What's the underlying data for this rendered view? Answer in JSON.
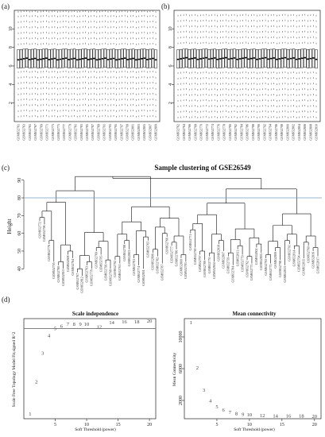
{
  "panel_labels": [
    "(a)",
    "(b)",
    "(c)",
    "(d)"
  ],
  "chart_data": [
    {
      "id": "a",
      "type": "boxplot",
      "title": "",
      "ylim": [
        0,
        12
      ],
      "yticks": [
        2,
        4,
        6,
        8,
        10
      ],
      "n_boxes": 50,
      "box": {
        "q1": 5.8,
        "median": 6.75,
        "q3": 7.8
      },
      "whisker_dashes": [
        0.5,
        1.1,
        1.7,
        2.3,
        2.9,
        3.5,
        4.1,
        4.7,
        5.3,
        8.3,
        8.9,
        9.5,
        10.1,
        10.7,
        11.3,
        11.8
      ],
      "xlabels": [
        "GSM652761",
        "GSM652763",
        "GSM652765",
        "GSM652767",
        "GSM652769",
        "GSM652771",
        "GSM652773",
        "GSM652775",
        "GSM652777",
        "GSM652779",
        "GSM652781",
        "GSM652783",
        "GSM652785",
        "GSM652787",
        "GSM652789",
        "GSM652791",
        "GSM652793",
        "GSM652795",
        "GSM652797",
        "GSM652799",
        "GSM652801",
        "GSM652803",
        "GSM652805",
        "GSM652807",
        "GSM652809"
      ]
    },
    {
      "id": "b",
      "type": "boxplot",
      "title": "",
      "ylim": [
        0,
        12
      ],
      "yticks": [
        2,
        4,
        6,
        8,
        10
      ],
      "n_boxes": 50,
      "box": {
        "q1": 5.8,
        "median": 6.8,
        "q3": 7.8
      },
      "whisker_dashes": [
        0.4,
        1.0,
        1.6,
        2.2,
        2.8,
        3.4,
        4.0,
        4.6,
        5.2,
        8.4,
        9.0,
        9.6,
        10.2,
        10.8,
        11.4
      ],
      "xlabels": [
        "GSM652762",
        "GSM652764",
        "GSM652766",
        "GSM652768",
        "GSM652770",
        "GSM652772",
        "GSM652774",
        "GSM652776",
        "GSM652778",
        "GSM652780",
        "GSM652782",
        "GSM652784",
        "GSM652786",
        "GSM652788",
        "GSM652790",
        "GSM652792",
        "GSM652794",
        "GSM652796",
        "GSM652798",
        "GSM652800",
        "GSM652802",
        "GSM652804",
        "GSM652806",
        "GSM652808",
        "GSM652810"
      ]
    },
    {
      "id": "c",
      "type": "dendrogram",
      "title": "Sample clustering of GSE26549",
      "ylabel": "Height",
      "ylim": [
        37,
        93
      ],
      "yticks": [
        40,
        50,
        60,
        70,
        80,
        90
      ],
      "cut_height": 80,
      "cut_color": "#6f9fc4",
      "n_leaves": 60,
      "leaf_heights": [
        71,
        69,
        58,
        48,
        46,
        44,
        52,
        50,
        42,
        40,
        46,
        44,
        54,
        52,
        47,
        44,
        49,
        47,
        58,
        55,
        50,
        46,
        44,
        60,
        53,
        51,
        47,
        62,
        57,
        55,
        50,
        48,
        64,
        56,
        52,
        49,
        51,
        48,
        58,
        54,
        51,
        46,
        55,
        52,
        49,
        47,
        56,
        53,
        50,
        47,
        54,
        49,
        46,
        58,
        55,
        52,
        50,
        57,
        54,
        51
      ],
      "leaf_labels": [
        "GSM652772",
        "GSM652796",
        "GSM652776",
        "GSM652795",
        "GSM652780",
        "GSM652810",
        "GSM652808",
        "GSM652764",
        "GSM652767",
        "GSM652812",
        "GSM652763",
        "GSM652778",
        "GSM652769",
        "GSM652785",
        "GSM652799",
        "GSM652768",
        "GSM652792",
        "GSM652761",
        "GSM652788",
        "GSM652803",
        "GSM652781",
        "GSM652774",
        "GSM652801",
        "GSM652765",
        "GSM652806",
        "GSM652782",
        "GSM652787",
        "GSM652766",
        "GSM652777",
        "GSM652786",
        "GSM652800",
        "GSM652783",
        "GSM652771",
        "GSM652790",
        "GSM652797",
        "GSM652789",
        "GSM652770",
        "GSM652804",
        "GSM652818",
        "GSM652807",
        "GSM652759",
        "GSM652784",
        "GSM652811",
        "GSM652779",
        "GSM652762",
        "GSM652775",
        "GSM652802",
        "GSM652805",
        "GSM652793",
        "GSM652773",
        "GSM652809",
        "GSM652798",
        "GSM652813",
        "GSM652791",
        "GSM652814",
        "GSM652794",
        "GSM652815",
        "GSM652760",
        "GSM652816",
        "GSM652817"
      ]
    },
    {
      "id": "d1",
      "type": "scatter",
      "title": "Scale independence",
      "xlabel": "Soft Threshold (power)",
      "ylabel": "Scale Free Topology Model Fit,signed R^2",
      "xlim": [
        0,
        21
      ],
      "ylim": [
        -0.25,
        0.97
      ],
      "xticks": [
        5,
        10,
        15,
        20
      ],
      "hline": 0.85,
      "hline_color": "#e0403a",
      "points": [
        {
          "x": 1,
          "y": -0.19,
          "label": "1"
        },
        {
          "x": 2,
          "y": 0.2,
          "label": "2"
        },
        {
          "x": 3,
          "y": 0.55,
          "label": "3"
        },
        {
          "x": 4,
          "y": 0.76,
          "label": "4"
        },
        {
          "x": 5,
          "y": 0.85,
          "label": "5"
        },
        {
          "x": 6,
          "y": 0.88,
          "label": "6"
        },
        {
          "x": 7,
          "y": 0.9,
          "label": "7"
        },
        {
          "x": 8,
          "y": 0.9,
          "label": "8"
        },
        {
          "x": 9,
          "y": 0.9,
          "label": "9"
        },
        {
          "x": 10,
          "y": 0.9,
          "label": "10"
        },
        {
          "x": 12,
          "y": 0.87,
          "label": "12"
        },
        {
          "x": 14,
          "y": 0.92,
          "label": "14"
        },
        {
          "x": 16,
          "y": 0.93,
          "label": "16"
        },
        {
          "x": 18,
          "y": 0.93,
          "label": "18"
        },
        {
          "x": 20,
          "y": 0.94,
          "label": "20"
        }
      ]
    },
    {
      "id": "d2",
      "type": "scatter",
      "title": "Mean connectivity",
      "xlabel": "Soft Threshold (power)",
      "ylabel": "Mean Connectivity",
      "xlim": [
        0,
        21
      ],
      "ylim": [
        -300,
        12300
      ],
      "xticks": [
        5,
        10,
        15,
        20
      ],
      "yticks": [
        2000,
        6000,
        10000
      ],
      "ytick_labels": [
        "2000",
        "6000",
        "10000"
      ],
      "points": [
        {
          "x": 1,
          "y": 11800,
          "label": "1"
        },
        {
          "x": 2,
          "y": 6100,
          "label": "2"
        },
        {
          "x": 3,
          "y": 3300,
          "label": "3"
        },
        {
          "x": 4,
          "y": 1950,
          "label": "4"
        },
        {
          "x": 5,
          "y": 1200,
          "label": "5"
        },
        {
          "x": 6,
          "y": 780,
          "label": "6"
        },
        {
          "x": 7,
          "y": 520,
          "label": "7"
        },
        {
          "x": 8,
          "y": 360,
          "label": "8"
        },
        {
          "x": 9,
          "y": 260,
          "label": "9"
        },
        {
          "x": 10,
          "y": 190,
          "label": "10"
        },
        {
          "x": 12,
          "y": 110,
          "label": "12"
        },
        {
          "x": 14,
          "y": 70,
          "label": "14"
        },
        {
          "x": 16,
          "y": 45,
          "label": "16"
        },
        {
          "x": 18,
          "y": 30,
          "label": "18"
        },
        {
          "x": 20,
          "y": 20,
          "label": "20"
        }
      ]
    }
  ]
}
